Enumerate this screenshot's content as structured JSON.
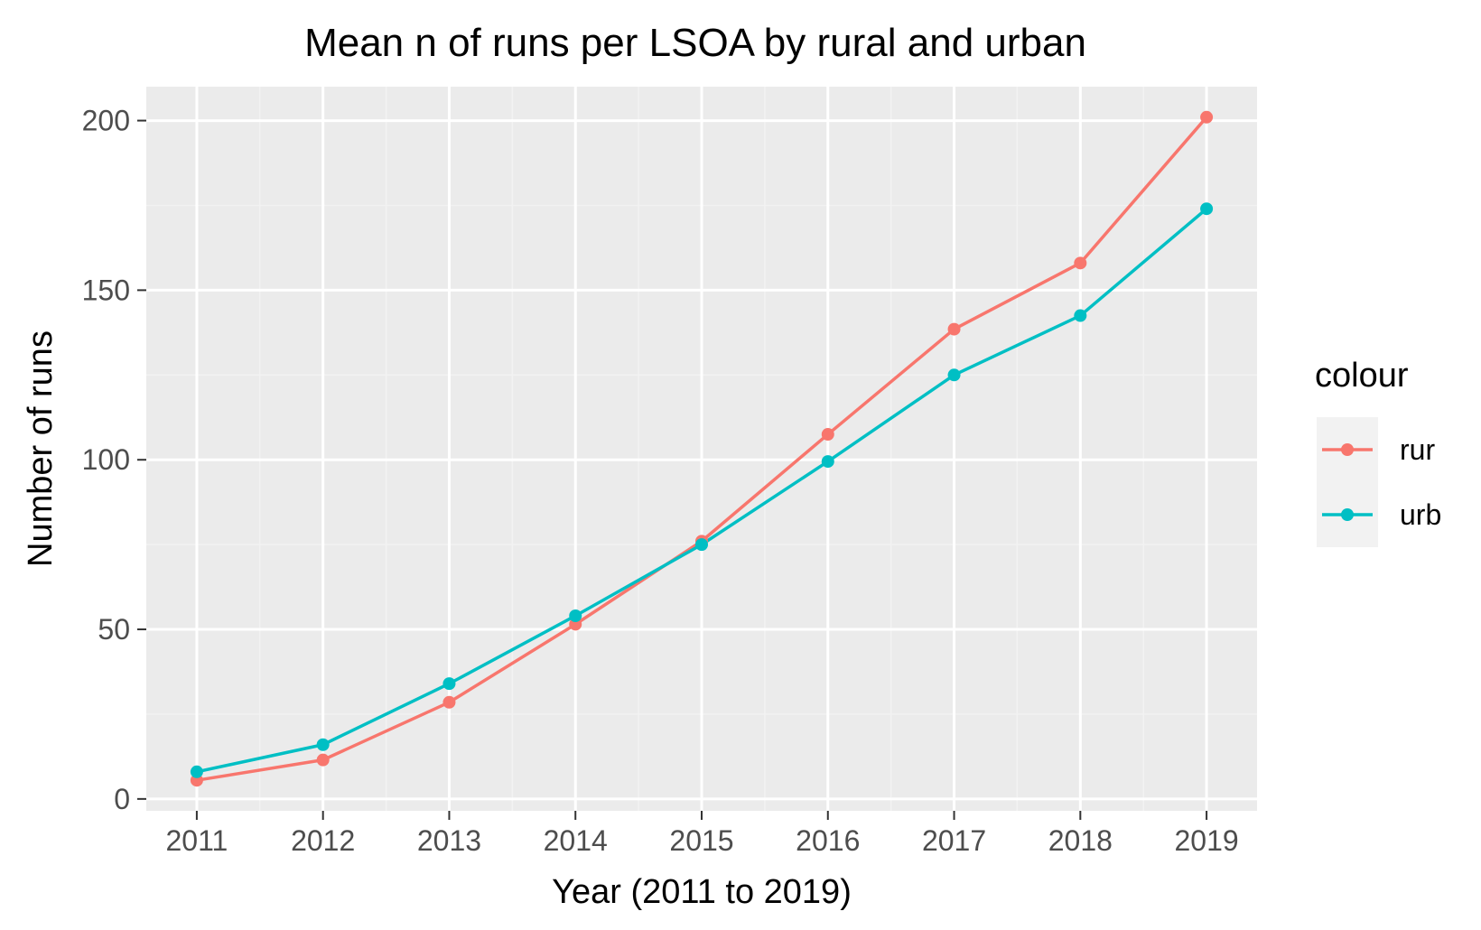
{
  "chart_data": {
    "type": "line",
    "title": "Mean n of runs per LSOA by rural and urban",
    "xlabel": "Year (2011 to 2019)",
    "ylabel": "Number of runs",
    "x": [
      2011,
      2012,
      2013,
      2014,
      2015,
      2016,
      2017,
      2018,
      2019
    ],
    "x_tick_labels": [
      "2011",
      "2012",
      "2013",
      "2014",
      "2015",
      "2016",
      "2017",
      "2018",
      "2019"
    ],
    "xlim": [
      2010.6,
      2019.4
    ],
    "ylim": [
      -3.5,
      210
    ],
    "y_ticks": [
      0,
      50,
      100,
      150,
      200
    ],
    "y_tick_labels": [
      "0",
      "50",
      "100",
      "150",
      "200"
    ],
    "grid": true,
    "legend": {
      "title": "colour",
      "position": "right"
    },
    "series": [
      {
        "name": "rur",
        "color": "#F8766D",
        "values": [
          5.5,
          11.5,
          28.5,
          51.5,
          76,
          107.5,
          138.5,
          158,
          201
        ]
      },
      {
        "name": "urb",
        "color": "#00BFC4",
        "values": [
          8,
          16,
          34,
          54,
          75,
          99.5,
          125,
          142.5,
          174
        ]
      }
    ],
    "colors": {
      "panel_background": "#EBEBEB",
      "grid_major": "#FFFFFF",
      "grid_minor": "#F2F2F2",
      "legend_key_background": "#F2F2F2",
      "tick_text": "#4D4D4D"
    }
  }
}
